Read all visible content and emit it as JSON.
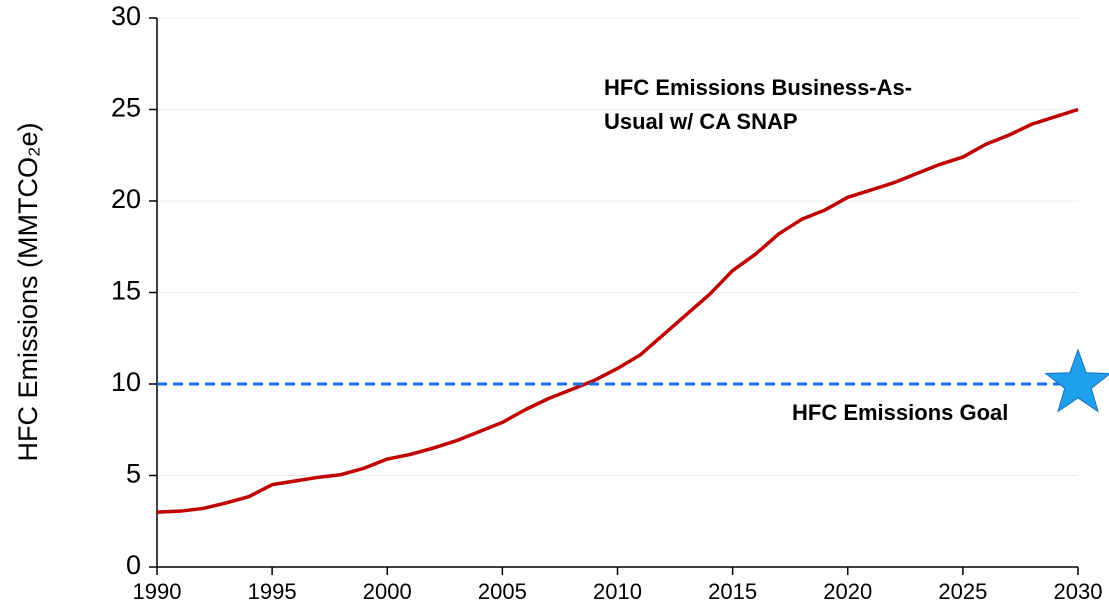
{
  "chart_data": {
    "type": "line",
    "ylabel": "HFC Emissions (MMTCO₂e)",
    "x": [
      1990,
      1991,
      1992,
      1993,
      1994,
      1995,
      1996,
      1997,
      1998,
      1999,
      2000,
      2001,
      2002,
      2003,
      2004,
      2005,
      2006,
      2007,
      2008,
      2009,
      2010,
      2011,
      2012,
      2013,
      2014,
      2015,
      2016,
      2017,
      2018,
      2019,
      2020,
      2021,
      2022,
      2023,
      2024,
      2025,
      2026,
      2027,
      2028,
      2029,
      2030
    ],
    "series": [
      {
        "name": "HFC Emissions Business-As-Usual w/ CA SNAP",
        "color": "#c00000",
        "values": [
          3.0,
          3.05,
          3.2,
          3.5,
          3.85,
          4.5,
          4.7,
          4.9,
          5.05,
          5.4,
          5.9,
          6.15,
          6.5,
          6.9,
          7.4,
          7.9,
          8.6,
          9.2,
          9.7,
          10.2,
          10.85,
          11.6,
          12.7,
          13.8,
          14.9,
          16.2,
          17.1,
          18.2,
          19.0,
          19.5,
          20.2,
          20.6,
          21.0,
          21.5,
          22.0,
          22.4,
          23.1,
          23.6,
          24.2,
          24.6,
          25.0
        ]
      }
    ],
    "goal": {
      "name": "HFC Emissions Goal",
      "value": 10,
      "x": 2030,
      "color": "#1a6fe6",
      "text_color": "#1f3fd6",
      "star_color": "#1fa0ec"
    },
    "annotations": [
      {
        "lines": [
          "HFC Emissions Business-As-",
          "Usual w/ CA SNAP"
        ]
      }
    ],
    "xlim": [
      1990,
      2030
    ],
    "xticks": [
      1990,
      1995,
      2000,
      2005,
      2010,
      2015,
      2020,
      2025,
      2030
    ],
    "ylim": [
      0,
      30
    ],
    "yticks": [
      0,
      5,
      10,
      15,
      20,
      25,
      30
    ],
    "grid": true
  }
}
